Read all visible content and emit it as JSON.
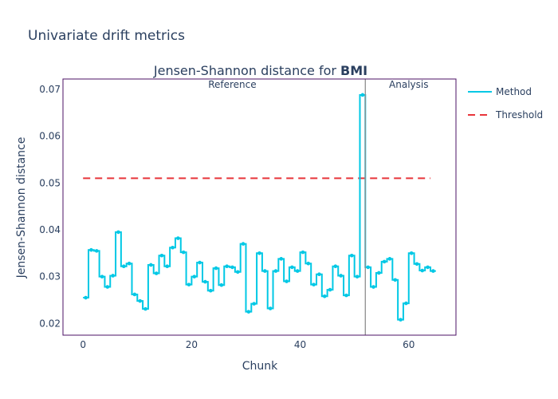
{
  "figure_title": "Univariate drift metrics",
  "chart_data": {
    "type": "line",
    "title_prefix": "Jensen-Shannon distance for ",
    "title_bold": "BMI",
    "xlabel": "Chunk",
    "ylabel": "Jensen-Shannon distance",
    "xlim": [
      -3.7,
      68.7
    ],
    "ylim": [
      0.0175,
      0.0722
    ],
    "x_ticks": [
      0,
      20,
      40,
      60
    ],
    "y_ticks": [
      0.02,
      0.03,
      0.04,
      0.05,
      0.06,
      0.07
    ],
    "y_tick_labels": [
      "0.02",
      "0.03",
      "0.04",
      "0.05",
      "0.06",
      "0.07"
    ],
    "grid": false,
    "legend_position": "right",
    "section_divider_x": 52,
    "section_labels": [
      {
        "text": "Reference",
        "x": 27.5
      },
      {
        "text": "Analysis",
        "x": 60
      }
    ],
    "series": [
      {
        "name": "Method",
        "color": "#00c8e5",
        "style": "step",
        "values": [
          0.0255,
          0.0357,
          0.0355,
          0.03,
          0.0278,
          0.0302,
          0.0395,
          0.0322,
          0.0328,
          0.0262,
          0.0248,
          0.0231,
          0.0325,
          0.0307,
          0.0345,
          0.0322,
          0.0362,
          0.0382,
          0.0352,
          0.0283,
          0.03,
          0.033,
          0.0289,
          0.027,
          0.0318,
          0.0282,
          0.0322,
          0.032,
          0.031,
          0.037,
          0.0225,
          0.0242,
          0.035,
          0.0312,
          0.0232,
          0.0312,
          0.0338,
          0.029,
          0.032,
          0.0312,
          0.0352,
          0.0328,
          0.0283,
          0.0305,
          0.0258,
          0.0272,
          0.0322,
          0.0302,
          0.026,
          0.0345,
          0.03,
          0.0688,
          0.032,
          0.0278,
          0.0308,
          0.0332,
          0.0338,
          0.0293,
          0.0208,
          0.0243,
          0.035,
          0.0327,
          0.0313,
          0.032,
          0.0312
        ]
      },
      {
        "name": "Threshold",
        "color": "#e8353b",
        "style": "dash",
        "x_start": 0,
        "x_end": 64,
        "value": 0.051
      }
    ]
  }
}
